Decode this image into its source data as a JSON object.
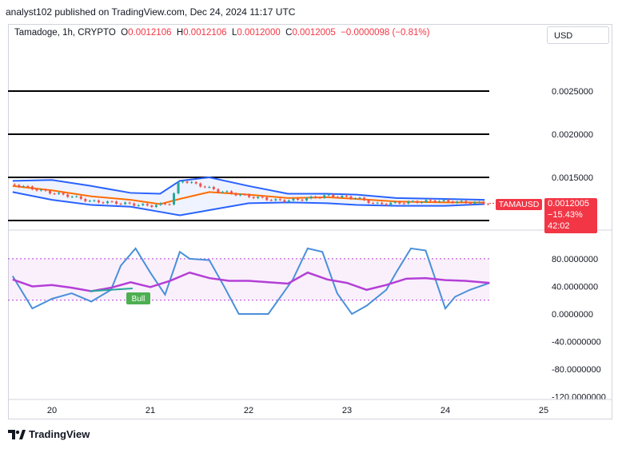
{
  "header": {
    "text": "analyst102 published on TradingView.com, Dec 24, 2024 11:17 UTC"
  },
  "legend": {
    "symbol": "Tamadoge, 1h, CRYPTO",
    "o_label": "O",
    "o": "0.0012106",
    "h_label": "H",
    "h": "0.0012106",
    "l_label": "L",
    "l": "0.0012000",
    "c_label": "C",
    "c": "0.0012005",
    "change": "−0.0000098 (−0.81%)"
  },
  "currency_button": "USD",
  "price_tag": {
    "symbol": "TAMAUSD",
    "price": "0.0012005",
    "pct": "−15.43%",
    "countdown": "42:02"
  },
  "footer": {
    "brand": "TradingView"
  },
  "colors": {
    "up": "#26a69a",
    "down": "#ef5350",
    "band": "#2962ff",
    "basis": "#ff6d00",
    "stoch_k": "#4a90d9",
    "rsi": "#b43fd6",
    "level": "#000000"
  },
  "chart_data": [
    {
      "type": "line",
      "title": "",
      "indicator": "Bollinger Bands with candlesticks",
      "x_ticks": [
        "20",
        "21",
        "22",
        "23",
        "24",
        "25"
      ],
      "y_ticks": [
        "0.0015000",
        "0.0020000",
        "0.0025000"
      ],
      "ylim": [
        0.00115,
        0.0029
      ],
      "horizontal_levels": [
        0.0025,
        0.002,
        0.0015,
        0.001
      ],
      "series": [
        {
          "name": "upper",
          "x": [
            19.6,
            20,
            20.4,
            20.8,
            21.1,
            21.3,
            21.6,
            22,
            22.4,
            22.8,
            23.1,
            23.5,
            24,
            24.4
          ],
          "values": [
            0.00146,
            0.00147,
            0.0014,
            0.00132,
            0.00131,
            0.00146,
            0.0015,
            0.0014,
            0.00131,
            0.00131,
            0.0013,
            0.00126,
            0.00125,
            0.00124
          ]
        },
        {
          "name": "basis",
          "x": [
            19.6,
            20,
            20.4,
            20.8,
            21.1,
            21.3,
            21.6,
            22,
            22.4,
            22.8,
            23.1,
            23.5,
            24,
            24.4
          ],
          "values": [
            0.0014,
            0.00135,
            0.00128,
            0.00124,
            0.00119,
            0.00125,
            0.00133,
            0.0013,
            0.00126,
            0.00127,
            0.00125,
            0.00122,
            0.00121,
            0.00121
          ]
        },
        {
          "name": "lower",
          "x": [
            19.6,
            20,
            20.4,
            20.8,
            21.1,
            21.3,
            21.6,
            22,
            22.4,
            22.8,
            23.1,
            23.5,
            24,
            24.4
          ],
          "values": [
            0.00133,
            0.00124,
            0.00118,
            0.00116,
            0.0011,
            0.00106,
            0.00112,
            0.0012,
            0.00121,
            0.0012,
            0.00118,
            0.00117,
            0.00117,
            0.00119
          ]
        },
        {
          "name": "close",
          "x": [
            19.6,
            19.8,
            20,
            20.2,
            20.4,
            20.6,
            20.8,
            21,
            21.2,
            21.3,
            21.5,
            21.7,
            22,
            22.3,
            22.5,
            22.8,
            23.1,
            23.3,
            23.6,
            23.9,
            24.2,
            24.45
          ],
          "values": [
            0.00142,
            0.00137,
            0.00132,
            0.00128,
            0.00122,
            0.00121,
            0.00119,
            0.00117,
            0.0012,
            0.00147,
            0.00141,
            0.00134,
            0.00128,
            0.00123,
            0.00124,
            0.00129,
            0.00126,
            0.00119,
            0.00121,
            0.00123,
            0.00121,
            0.0012
          ]
        }
      ]
    },
    {
      "type": "line",
      "title": "",
      "indicator": "Stochastic / RSI oscillator",
      "x_ticks": [
        "20",
        "21",
        "22",
        "23",
        "24",
        "25"
      ],
      "y_ticks": [
        "80.0000000",
        "40.0000000",
        "0.0000000",
        "-40.0000000",
        "-80.0000000",
        "-120.0000000"
      ],
      "ylim": [
        -125,
        100
      ],
      "band": [
        20,
        80
      ],
      "annotation": "Bull",
      "series": [
        {
          "name": "stoch",
          "x": [
            19.6,
            19.8,
            20,
            20.2,
            20.4,
            20.6,
            20.7,
            20.85,
            21,
            21.15,
            21.3,
            21.4,
            21.6,
            21.75,
            21.9,
            22,
            22.2,
            22.45,
            22.6,
            22.75,
            22.9,
            23.05,
            23.2,
            23.4,
            23.5,
            23.65,
            23.8,
            24,
            24.1,
            24.25,
            24.45
          ],
          "values": [
            55,
            8,
            22,
            30,
            18,
            35,
            70,
            95,
            60,
            28,
            90,
            80,
            78,
            40,
            0,
            0,
            0,
            50,
            95,
            90,
            30,
            0,
            12,
            35,
            60,
            95,
            92,
            8,
            25,
            35,
            45
          ]
        },
        {
          "name": "rsi",
          "x": [
            19.6,
            19.8,
            20,
            20.2,
            20.4,
            20.6,
            20.8,
            21,
            21.2,
            21.4,
            21.6,
            21.8,
            22,
            22.2,
            22.4,
            22.6,
            22.8,
            23,
            23.2,
            23.4,
            23.6,
            23.8,
            24,
            24.2,
            24.45
          ],
          "values": [
            50,
            40,
            42,
            38,
            33,
            38,
            46,
            39,
            48,
            60,
            52,
            48,
            48,
            46,
            44,
            60,
            50,
            45,
            35,
            42,
            51,
            52,
            49,
            48,
            45
          ]
        }
      ]
    }
  ]
}
